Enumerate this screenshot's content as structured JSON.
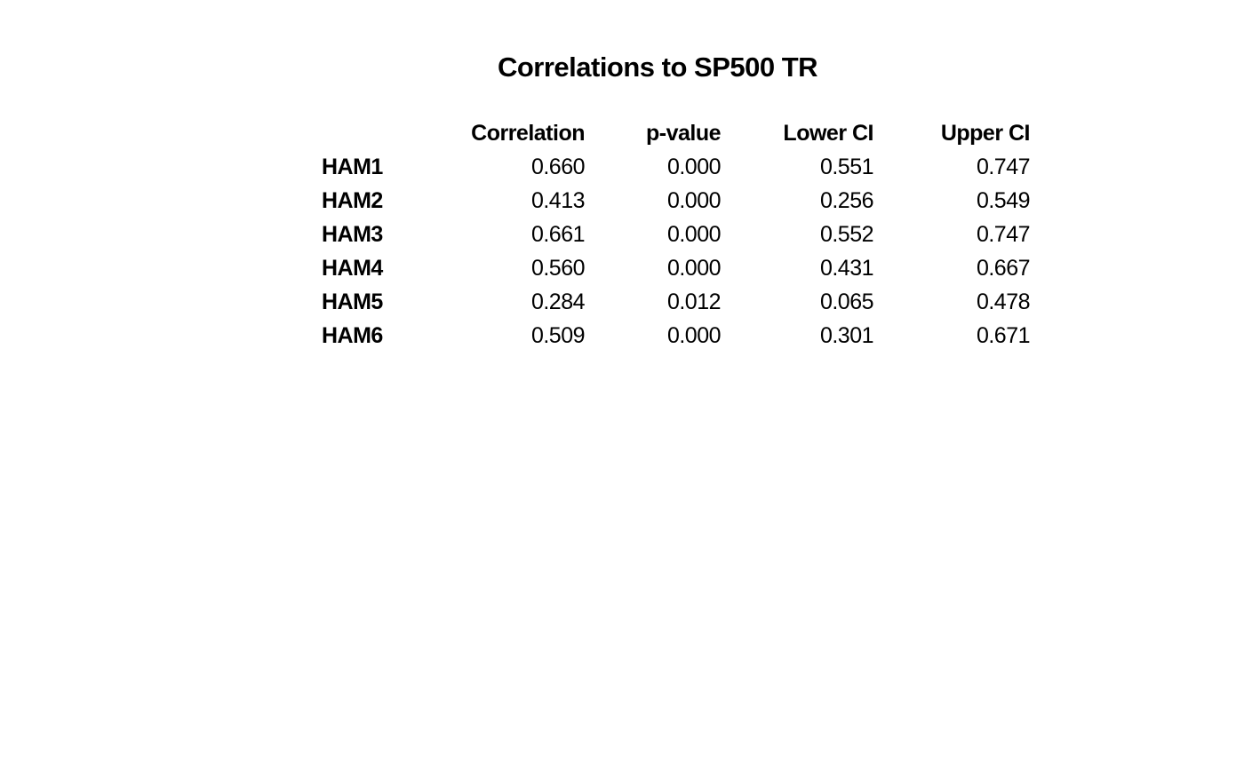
{
  "title": "Correlations to SP500 TR",
  "colors": {
    "background": "#ffffff",
    "text": "#000000"
  },
  "chart_data": {
    "type": "table",
    "title": "Correlations to SP500 TR",
    "row_header": "",
    "columns": [
      "Correlation",
      "p-value",
      "Lower CI",
      "Upper CI"
    ],
    "rows": [
      {
        "label": "HAM1",
        "values": [
          "0.660",
          "0.000",
          "0.551",
          "0.747"
        ]
      },
      {
        "label": "HAM2",
        "values": [
          "0.413",
          "0.000",
          "0.256",
          "0.549"
        ]
      },
      {
        "label": "HAM3",
        "values": [
          "0.661",
          "0.000",
          "0.552",
          "0.747"
        ]
      },
      {
        "label": "HAM4",
        "values": [
          "0.560",
          "0.000",
          "0.431",
          "0.667"
        ]
      },
      {
        "label": "HAM5",
        "values": [
          "0.284",
          "0.012",
          "0.065",
          "0.478"
        ]
      },
      {
        "label": "HAM6",
        "values": [
          "0.509",
          "0.000",
          "0.301",
          "0.671"
        ]
      }
    ],
    "layout": {
      "grid": false,
      "values_numeric": {
        "correlation": [
          0.66,
          0.413,
          0.661,
          0.56,
          0.284,
          0.509
        ],
        "p_value": [
          0.0,
          0.0,
          0.0,
          0.0,
          0.012,
          0.0
        ],
        "lower_ci": [
          0.551,
          0.256,
          0.552,
          0.431,
          0.065,
          0.301
        ],
        "upper_ci": [
          0.747,
          0.549,
          0.747,
          0.667,
          0.478,
          0.671
        ]
      }
    }
  }
}
